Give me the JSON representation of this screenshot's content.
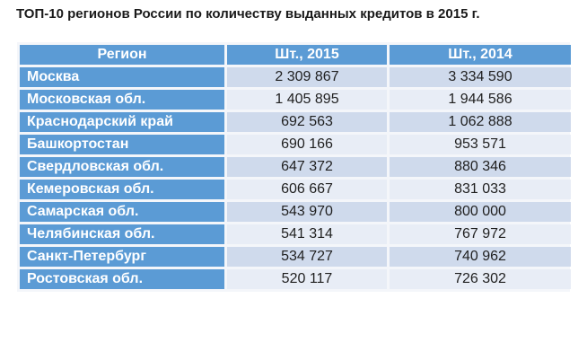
{
  "title": "ТОП-10 регионов России по количеству выданных кредитов в 2015 г.",
  "table": {
    "headers": [
      "Регион",
      "Шт., 2015",
      "Шт., 2014"
    ],
    "rows": [
      {
        "region": "Москва",
        "y2015": "2 309 867",
        "y2014": "3 334 590"
      },
      {
        "region": "Московская обл.",
        "y2015": "1 405 895",
        "y2014": "1 944 586"
      },
      {
        "region": "Краснодарский край",
        "y2015": "692 563",
        "y2014": "1 062 888"
      },
      {
        "region": "Башкортостан",
        "y2015": "690 166",
        "y2014": "953 571"
      },
      {
        "region": "Свердловская обл.",
        "y2015": "647 372",
        "y2014": "880 346"
      },
      {
        "region": "Кемеровская обл.",
        "y2015": "606 667",
        "y2014": "831 033"
      },
      {
        "region": "Самарская обл.",
        "y2015": "543 970",
        "y2014": "800 000"
      },
      {
        "region": "Челябинская обл.",
        "y2015": "541 314",
        "y2014": "767 972"
      },
      {
        "region": "Санкт-Петербург",
        "y2015": "534 727",
        "y2014": "740 962"
      },
      {
        "region": "Ростовская обл.",
        "y2015": "520 117",
        "y2014": "726 302"
      }
    ]
  },
  "colors": {
    "header_bg": "#5b9bd5",
    "header_text": "#ffffff",
    "row_odd_bg": "#cfdaec",
    "row_even_bg": "#e8edf6"
  }
}
